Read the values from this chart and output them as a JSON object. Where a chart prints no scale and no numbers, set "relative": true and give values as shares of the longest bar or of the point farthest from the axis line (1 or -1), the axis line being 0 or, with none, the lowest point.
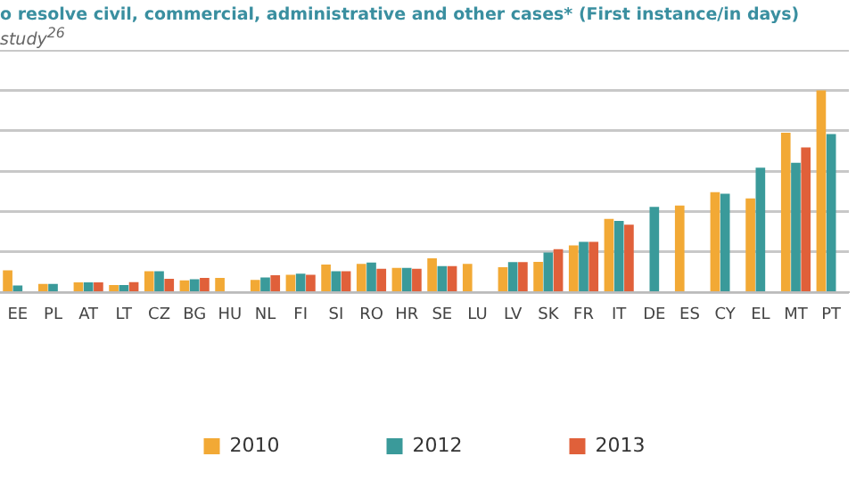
{
  "chart_data": {
    "type": "bar",
    "title": "o resolve civil, commercial, administrative and other cases* (First instance/in days)",
    "subtitle": "study$^{26}$",
    "categories": [
      "EE",
      "PL",
      "AT",
      "LT",
      "CZ",
      "BG",
      "HU",
      "NL",
      "FI",
      "SI",
      "RO",
      "HR",
      "SE",
      "LU",
      "LV",
      "SK",
      "FR",
      "IT",
      "DE",
      "ES",
      "CY",
      "EL",
      "MT",
      "PT"
    ],
    "relative": true,
    "grid": "y",
    "legend": "bottom",
    "series": [
      {
        "name": "2010",
        "color": "#f2a935",
        "values": [
          0.11,
          0.043,
          0.05,
          0.037,
          0.105,
          0.06,
          0.072,
          0.062,
          0.088,
          0.138,
          0.142,
          0.122,
          0.169,
          0.142,
          0.125,
          0.152,
          0.233,
          0.364,
          null,
          0.43,
          0.496,
          0.465,
          0.79,
          1
        ]
      },
      {
        "name": "2012",
        "color": "#3a9a9a",
        "values": [
          0.035,
          0.043,
          0.05,
          0.037,
          0.105,
          0.066,
          null,
          0.074,
          0.093,
          0.105,
          0.148,
          0.122,
          0.131,
          null,
          0.15,
          0.198,
          0.251,
          0.354,
          0.424,
          null,
          0.488,
          0.617,
          0.642,
          0.784
        ]
      },
      {
        "name": "2013",
        "color": "#e0603a",
        "values": [
          null,
          null,
          0.05,
          0.051,
          0.068,
          0.072,
          null,
          0.085,
          0.088,
          0.105,
          0.117,
          0.117,
          0.131,
          null,
          0.15,
          0.214,
          0.251,
          0.335,
          null,
          null,
          null,
          null,
          0.718,
          null
        ]
      }
    ]
  }
}
